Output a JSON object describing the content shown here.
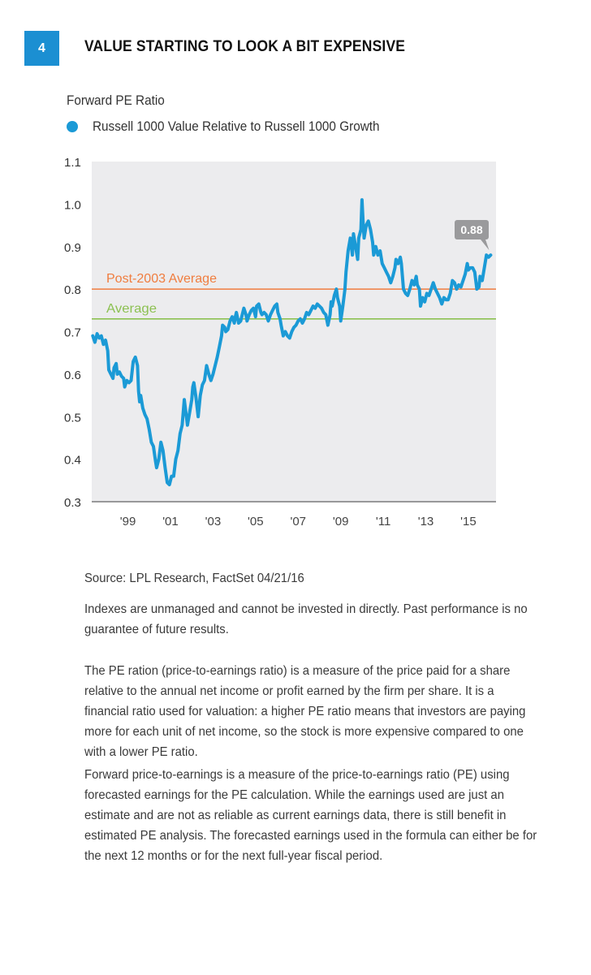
{
  "header": {
    "figure_number": "4",
    "title": "VALUE STARTING TO LOOK A BIT EXPENSIVE",
    "badge_color": "#1b8fd2"
  },
  "chart_data": {
    "type": "line",
    "title": "Forward PE Ratio",
    "xlabel": "",
    "ylabel": "",
    "legend": [
      {
        "label": "Russell 1000 Value Relative to Russell 1000 Growth",
        "color": "#1b9ad6",
        "marker": "circle"
      }
    ],
    "legend_position": "top-left",
    "grid": false,
    "background": "#ececee",
    "x_range": [
      1997.3,
      2016.3
    ],
    "ylim": [
      0.3,
      1.1
    ],
    "y_ticks": [
      "0.3",
      "0.4",
      "0.5",
      "0.6",
      "0.7",
      "0.8",
      "0.9",
      "1.0",
      "1.1"
    ],
    "y_tick_values": [
      0.3,
      0.4,
      0.5,
      0.6,
      0.7,
      0.8,
      0.9,
      1.0,
      1.1
    ],
    "x_ticks": [
      "'99",
      "'01",
      "'03",
      "'05",
      "'07",
      "'09",
      "'11",
      "'13",
      "'15"
    ],
    "x_tick_values": [
      1999,
      2001,
      2003,
      2005,
      2007,
      2009,
      2011,
      2013,
      2015
    ],
    "reference_lines": [
      {
        "label": "Post-2003 Average",
        "value": 0.8,
        "color": "#f07d3f"
      },
      {
        "label": "Average",
        "value": 0.73,
        "color": "#8cc152"
      }
    ],
    "annotation": {
      "text": "0.88",
      "value": 0.88,
      "x": 2015.9,
      "color": "#9a9a9c"
    },
    "series": [
      {
        "name": "Russell 1000 Value Relative to Russell 1000 Growth",
        "color": "#1b9ad6",
        "points": [
          [
            1997.35,
            0.69
          ],
          [
            1997.45,
            0.675
          ],
          [
            1997.55,
            0.695
          ],
          [
            1997.65,
            0.685
          ],
          [
            1997.75,
            0.69
          ],
          [
            1997.85,
            0.67
          ],
          [
            1997.95,
            0.68
          ],
          [
            1998.05,
            0.655
          ],
          [
            1998.1,
            0.61
          ],
          [
            1998.2,
            0.6
          ],
          [
            1998.3,
            0.59
          ],
          [
            1998.35,
            0.615
          ],
          [
            1998.45,
            0.625
          ],
          [
            1998.5,
            0.6
          ],
          [
            1998.6,
            0.605
          ],
          [
            1998.7,
            0.595
          ],
          [
            1998.8,
            0.59
          ],
          [
            1998.85,
            0.57
          ],
          [
            1998.95,
            0.585
          ],
          [
            1999.05,
            0.58
          ],
          [
            1999.15,
            0.585
          ],
          [
            1999.25,
            0.63
          ],
          [
            1999.35,
            0.64
          ],
          [
            1999.45,
            0.62
          ],
          [
            1999.5,
            0.56
          ],
          [
            1999.55,
            0.535
          ],
          [
            1999.6,
            0.55
          ],
          [
            1999.7,
            0.52
          ],
          [
            1999.8,
            0.505
          ],
          [
            1999.9,
            0.495
          ],
          [
            2000.0,
            0.47
          ],
          [
            2000.1,
            0.44
          ],
          [
            2000.2,
            0.43
          ],
          [
            2000.3,
            0.395
          ],
          [
            2000.35,
            0.38
          ],
          [
            2000.45,
            0.4
          ],
          [
            2000.55,
            0.44
          ],
          [
            2000.65,
            0.42
          ],
          [
            2000.75,
            0.38
          ],
          [
            2000.85,
            0.345
          ],
          [
            2000.95,
            0.34
          ],
          [
            2001.05,
            0.36
          ],
          [
            2001.15,
            0.36
          ],
          [
            2001.25,
            0.4
          ],
          [
            2001.35,
            0.42
          ],
          [
            2001.45,
            0.46
          ],
          [
            2001.55,
            0.48
          ],
          [
            2001.65,
            0.54
          ],
          [
            2001.7,
            0.52
          ],
          [
            2001.8,
            0.48
          ],
          [
            2001.9,
            0.51
          ],
          [
            2002.0,
            0.54
          ],
          [
            2002.05,
            0.57
          ],
          [
            2002.1,
            0.58
          ],
          [
            2002.2,
            0.545
          ],
          [
            2002.3,
            0.5
          ],
          [
            2002.4,
            0.55
          ],
          [
            2002.5,
            0.575
          ],
          [
            2002.6,
            0.585
          ],
          [
            2002.7,
            0.62
          ],
          [
            2002.8,
            0.6
          ],
          [
            2002.9,
            0.585
          ],
          [
            2003.0,
            0.6
          ],
          [
            2003.1,
            0.62
          ],
          [
            2003.2,
            0.64
          ],
          [
            2003.3,
            0.665
          ],
          [
            2003.4,
            0.69
          ],
          [
            2003.45,
            0.715
          ],
          [
            2003.55,
            0.71
          ],
          [
            2003.6,
            0.7
          ],
          [
            2003.7,
            0.705
          ],
          [
            2003.8,
            0.725
          ],
          [
            2003.9,
            0.735
          ],
          [
            2004.0,
            0.72
          ],
          [
            2004.05,
            0.735
          ],
          [
            2004.1,
            0.745
          ],
          [
            2004.2,
            0.72
          ],
          [
            2004.3,
            0.725
          ],
          [
            2004.4,
            0.745
          ],
          [
            2004.45,
            0.755
          ],
          [
            2004.55,
            0.74
          ],
          [
            2004.6,
            0.725
          ],
          [
            2004.7,
            0.74
          ],
          [
            2004.8,
            0.75
          ],
          [
            2004.9,
            0.755
          ],
          [
            2005.0,
            0.735
          ],
          [
            2005.05,
            0.76
          ],
          [
            2005.15,
            0.765
          ],
          [
            2005.25,
            0.745
          ],
          [
            2005.3,
            0.74
          ],
          [
            2005.4,
            0.745
          ],
          [
            2005.5,
            0.74
          ],
          [
            2005.6,
            0.725
          ],
          [
            2005.7,
            0.74
          ],
          [
            2005.8,
            0.75
          ],
          [
            2005.9,
            0.76
          ],
          [
            2006.0,
            0.765
          ],
          [
            2006.05,
            0.745
          ],
          [
            2006.15,
            0.73
          ],
          [
            2006.2,
            0.715
          ],
          [
            2006.3,
            0.69
          ],
          [
            2006.4,
            0.7
          ],
          [
            2006.5,
            0.69
          ],
          [
            2006.6,
            0.685
          ],
          [
            2006.7,
            0.7
          ],
          [
            2006.8,
            0.71
          ],
          [
            2006.9,
            0.715
          ],
          [
            2007.0,
            0.725
          ],
          [
            2007.1,
            0.73
          ],
          [
            2007.2,
            0.72
          ],
          [
            2007.3,
            0.73
          ],
          [
            2007.4,
            0.745
          ],
          [
            2007.5,
            0.74
          ],
          [
            2007.6,
            0.75
          ],
          [
            2007.7,
            0.76
          ],
          [
            2007.8,
            0.755
          ],
          [
            2007.9,
            0.765
          ],
          [
            2008.0,
            0.76
          ],
          [
            2008.1,
            0.755
          ],
          [
            2008.2,
            0.745
          ],
          [
            2008.3,
            0.74
          ],
          [
            2008.4,
            0.715
          ],
          [
            2008.5,
            0.74
          ],
          [
            2008.55,
            0.77
          ],
          [
            2008.6,
            0.76
          ],
          [
            2008.7,
            0.785
          ],
          [
            2008.8,
            0.8
          ],
          [
            2008.85,
            0.78
          ],
          [
            2008.95,
            0.76
          ],
          [
            2009.0,
            0.725
          ],
          [
            2009.1,
            0.76
          ],
          [
            2009.2,
            0.8
          ],
          [
            2009.25,
            0.84
          ],
          [
            2009.35,
            0.89
          ],
          [
            2009.45,
            0.92
          ],
          [
            2009.55,
            0.88
          ],
          [
            2009.6,
            0.93
          ],
          [
            2009.7,
            0.9
          ],
          [
            2009.8,
            0.87
          ],
          [
            2009.85,
            0.92
          ],
          [
            2009.95,
            0.94
          ],
          [
            2010.0,
            1.01
          ],
          [
            2010.05,
            0.96
          ],
          [
            2010.1,
            0.92
          ],
          [
            2010.2,
            0.95
          ],
          [
            2010.3,
            0.96
          ],
          [
            2010.4,
            0.94
          ],
          [
            2010.5,
            0.91
          ],
          [
            2010.55,
            0.88
          ],
          [
            2010.65,
            0.9
          ],
          [
            2010.75,
            0.88
          ],
          [
            2010.85,
            0.89
          ],
          [
            2010.95,
            0.86
          ],
          [
            2011.05,
            0.85
          ],
          [
            2011.15,
            0.84
          ],
          [
            2011.25,
            0.83
          ],
          [
            2011.35,
            0.815
          ],
          [
            2011.45,
            0.83
          ],
          [
            2011.55,
            0.85
          ],
          [
            2011.6,
            0.87
          ],
          [
            2011.7,
            0.86
          ],
          [
            2011.8,
            0.875
          ],
          [
            2011.85,
            0.86
          ],
          [
            2011.95,
            0.8
          ],
          [
            2012.05,
            0.79
          ],
          [
            2012.15,
            0.785
          ],
          [
            2012.25,
            0.8
          ],
          [
            2012.35,
            0.82
          ],
          [
            2012.45,
            0.81
          ],
          [
            2012.55,
            0.83
          ],
          [
            2012.6,
            0.81
          ],
          [
            2012.7,
            0.8
          ],
          [
            2012.75,
            0.76
          ],
          [
            2012.85,
            0.78
          ],
          [
            2012.95,
            0.77
          ],
          [
            2013.05,
            0.79
          ],
          [
            2013.15,
            0.785
          ],
          [
            2013.25,
            0.8
          ],
          [
            2013.35,
            0.815
          ],
          [
            2013.45,
            0.8
          ],
          [
            2013.55,
            0.79
          ],
          [
            2013.65,
            0.78
          ],
          [
            2013.75,
            0.765
          ],
          [
            2013.85,
            0.78
          ],
          [
            2013.95,
            0.775
          ],
          [
            2014.05,
            0.775
          ],
          [
            2014.15,
            0.79
          ],
          [
            2014.25,
            0.82
          ],
          [
            2014.35,
            0.815
          ],
          [
            2014.45,
            0.8
          ],
          [
            2014.55,
            0.81
          ],
          [
            2014.65,
            0.805
          ],
          [
            2014.75,
            0.82
          ],
          [
            2014.85,
            0.835
          ],
          [
            2014.95,
            0.86
          ],
          [
            2015.0,
            0.845
          ],
          [
            2015.1,
            0.85
          ],
          [
            2015.2,
            0.85
          ],
          [
            2015.3,
            0.84
          ],
          [
            2015.4,
            0.8
          ],
          [
            2015.5,
            0.805
          ],
          [
            2015.55,
            0.83
          ],
          [
            2015.65,
            0.82
          ],
          [
            2015.75,
            0.85
          ],
          [
            2015.85,
            0.88
          ],
          [
            2015.95,
            0.875
          ],
          [
            2016.05,
            0.88
          ]
        ]
      }
    ]
  },
  "footer": {
    "source": "Source: LPL Research, FactSet   04/21/16",
    "disclaimer": "Indexes are unmanaged and cannot be invested in directly. Past performance is no guarantee of future results.",
    "paragraph1": "The PE ration (price-to-earnings ratio) is a measure of the price paid for a share relative to the annual net income or profit earned by the firm per share. It is a financial ratio used for valuation: a higher PE ratio means that investors are paying more for each unit of net income, so the stock is more expensive compared to one with a lower PE ratio.",
    "paragraph2": "Forward price-to-earnings is a measure of the price-to-earnings ratio (PE) using forecasted earnings for the PE calculation. While the earnings used are just an estimate and are not as reliable as current earnings data, there is still benefit in estimated PE analysis. The forecasted earnings used in the formula can either be for the next 12 months or for the next full-year fiscal period."
  }
}
